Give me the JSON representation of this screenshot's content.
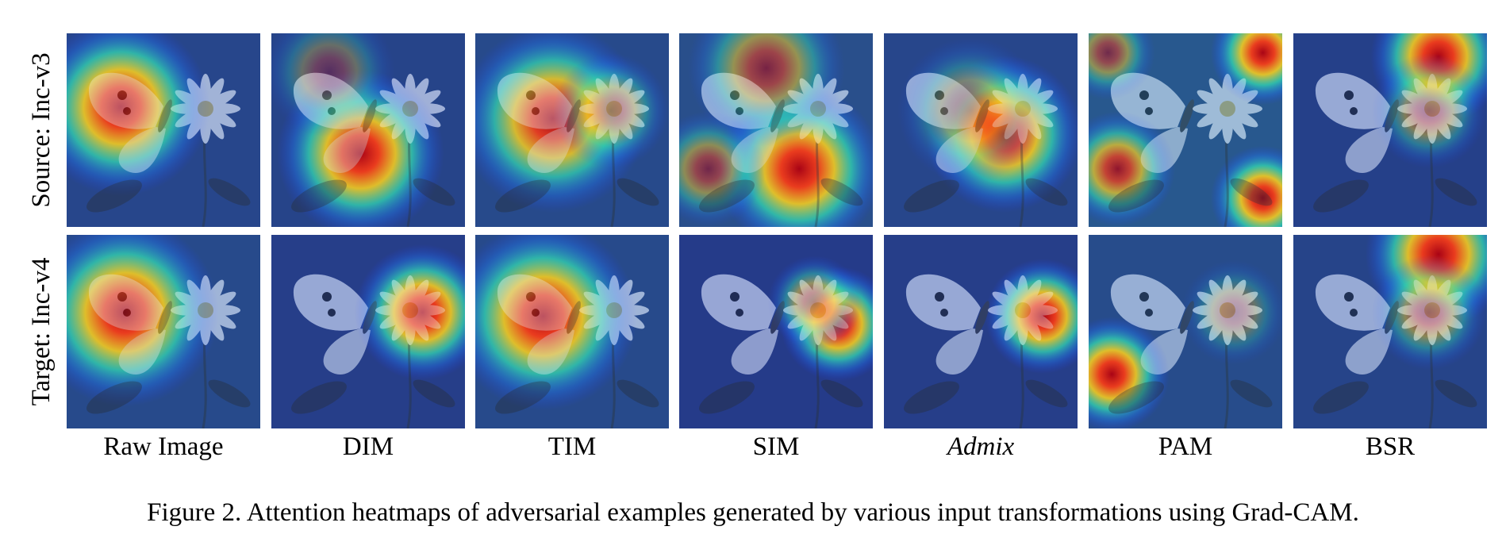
{
  "figure": {
    "row_labels": [
      "Source: Inc-v3",
      "Target: Inc-v4"
    ],
    "columns": [
      {
        "label": "Raw Image",
        "italic": false
      },
      {
        "label": "DIM",
        "italic": false
      },
      {
        "label": "TIM",
        "italic": false
      },
      {
        "label": "SIM",
        "italic": false
      },
      {
        "label": "Admix",
        "italic": true
      },
      {
        "label": "PAM",
        "italic": false
      },
      {
        "label": "BSR",
        "italic": false
      }
    ],
    "caption": "Figure 2. Attention heatmaps of adversarial examples generated by various input transformations using Grad-CAM."
  },
  "heatmaps": [
    [
      {
        "hot": [
          [
            0.28,
            0.38,
            0.34,
            1.0
          ]
        ],
        "bg": 0.18
      },
      {
        "hot": [
          [
            0.46,
            0.62,
            0.32,
            1.0
          ],
          [
            0.3,
            0.2,
            0.25,
            0.35
          ]
        ],
        "bg": 0.15
      },
      {
        "hot": [
          [
            0.4,
            0.44,
            0.36,
            0.95
          ],
          [
            0.7,
            0.4,
            0.22,
            0.55
          ]
        ],
        "bg": 0.2
      },
      {
        "hot": [
          [
            0.62,
            0.7,
            0.32,
            1.0
          ],
          [
            0.45,
            0.18,
            0.3,
            0.6
          ],
          [
            0.15,
            0.7,
            0.22,
            0.55
          ]
        ],
        "bg": 0.25
      },
      {
        "hot": [
          [
            0.62,
            0.52,
            0.3,
            1.0
          ],
          [
            0.45,
            0.4,
            0.28,
            0.45
          ]
        ],
        "bg": 0.18
      },
      {
        "hot": [
          [
            0.9,
            0.1,
            0.2,
            1.0
          ],
          [
            0.9,
            0.85,
            0.2,
            1.0
          ],
          [
            0.15,
            0.7,
            0.22,
            0.8
          ],
          [
            0.1,
            0.1,
            0.18,
            0.55
          ]
        ],
        "bg": 0.32
      },
      {
        "hot": [
          [
            0.75,
            0.12,
            0.26,
            1.0
          ],
          [
            0.7,
            0.4,
            0.22,
            0.5
          ]
        ],
        "bg": 0.12
      }
    ],
    [
      {
        "hot": [
          [
            0.3,
            0.4,
            0.36,
            1.0
          ]
        ],
        "bg": 0.2
      },
      {
        "hot": [
          [
            0.78,
            0.4,
            0.26,
            1.0
          ]
        ],
        "bg": 0.1
      },
      {
        "hot": [
          [
            0.35,
            0.42,
            0.36,
            1.0
          ]
        ],
        "bg": 0.2
      },
      {
        "hot": [
          [
            0.82,
            0.46,
            0.22,
            1.0
          ],
          [
            0.7,
            0.35,
            0.18,
            0.6
          ]
        ],
        "bg": 0.08
      },
      {
        "hot": [
          [
            0.82,
            0.42,
            0.22,
            1.0
          ]
        ],
        "bg": 0.1
      },
      {
        "hot": [
          [
            0.12,
            0.72,
            0.22,
            1.0
          ],
          [
            0.75,
            0.4,
            0.2,
            0.35
          ]
        ],
        "bg": 0.22
      },
      {
        "hot": [
          [
            0.75,
            0.1,
            0.28,
            1.0
          ],
          [
            0.7,
            0.4,
            0.22,
            0.55
          ]
        ],
        "bg": 0.15
      }
    ]
  ]
}
